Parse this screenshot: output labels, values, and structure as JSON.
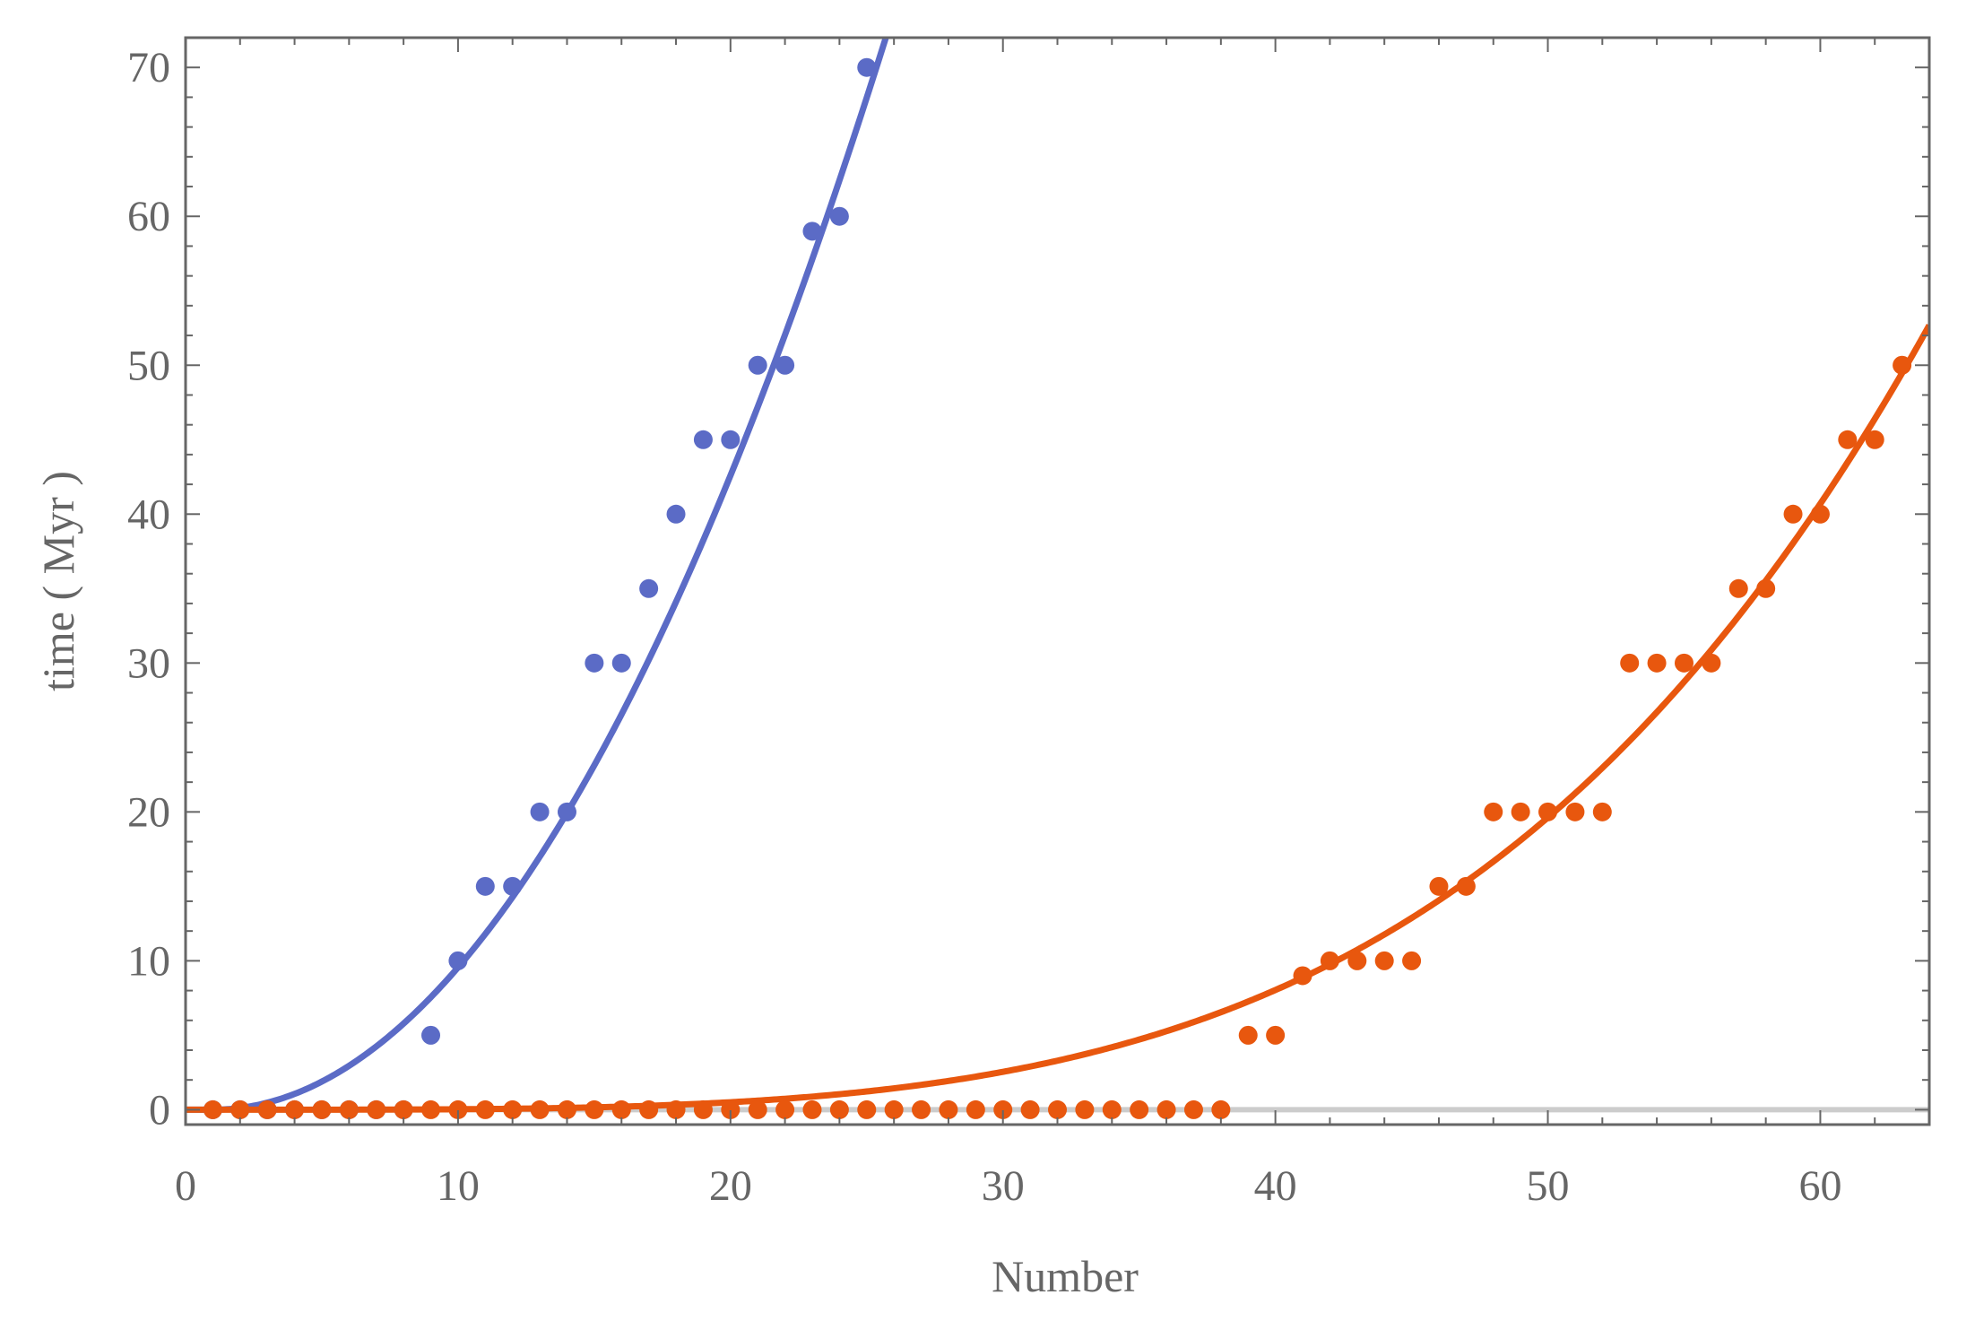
{
  "chart_data": {
    "type": "scatter",
    "title": "",
    "xlabel": "Number",
    "ylabel": "time ( Myr )",
    "xlim": [
      0,
      64
    ],
    "ylim": [
      -1,
      72
    ],
    "xticks": [
      0,
      10,
      20,
      30,
      40,
      50,
      60
    ],
    "yticks": [
      0,
      10,
      20,
      30,
      40,
      50,
      60,
      70
    ],
    "grid": false,
    "legend": "none",
    "reference_line_y": 0,
    "series": [
      {
        "color": "#5b6bc6",
        "points": [
          [
            1,
            0
          ],
          [
            2,
            0
          ],
          [
            3,
            0
          ],
          [
            4,
            0
          ],
          [
            5,
            0
          ],
          [
            6,
            0
          ],
          [
            7,
            0
          ],
          [
            8,
            0
          ],
          [
            9,
            5
          ],
          [
            10,
            10
          ],
          [
            11,
            15
          ],
          [
            12,
            15
          ],
          [
            13,
            20
          ],
          [
            14,
            20
          ],
          [
            15,
            30
          ],
          [
            16,
            30
          ],
          [
            17,
            35
          ],
          [
            18,
            40
          ],
          [
            19,
            45
          ],
          [
            20,
            45
          ],
          [
            21,
            50
          ],
          [
            22,
            50
          ],
          [
            23,
            59
          ],
          [
            24,
            60
          ],
          [
            25,
            70
          ]
        ],
        "fit": {
          "a": 0.118,
          "x0": 1,
          "p": 2
        }
      },
      {
        "color": "#e8570e",
        "points": [
          [
            1,
            0
          ],
          [
            2,
            0
          ],
          [
            3,
            0
          ],
          [
            4,
            0
          ],
          [
            5,
            0
          ],
          [
            6,
            0
          ],
          [
            7,
            0
          ],
          [
            8,
            0
          ],
          [
            9,
            0
          ],
          [
            10,
            0
          ],
          [
            11,
            0
          ],
          [
            12,
            0
          ],
          [
            13,
            0
          ],
          [
            14,
            0
          ],
          [
            15,
            0
          ],
          [
            16,
            0
          ],
          [
            17,
            0
          ],
          [
            18,
            0
          ],
          [
            19,
            0
          ],
          [
            20,
            0
          ],
          [
            21,
            0
          ],
          [
            22,
            0
          ],
          [
            23,
            0
          ],
          [
            24,
            0
          ],
          [
            25,
            0
          ],
          [
            26,
            0
          ],
          [
            27,
            0
          ],
          [
            28,
            0
          ],
          [
            29,
            0
          ],
          [
            30,
            0
          ],
          [
            31,
            0
          ],
          [
            32,
            0
          ],
          [
            33,
            0
          ],
          [
            34,
            0
          ],
          [
            35,
            0
          ],
          [
            36,
            0
          ],
          [
            37,
            0
          ],
          [
            38,
            0
          ],
          [
            39,
            5
          ],
          [
            40,
            5
          ],
          [
            41,
            9
          ],
          [
            42,
            10
          ],
          [
            43,
            10
          ],
          [
            44,
            10
          ],
          [
            45,
            10
          ],
          [
            46,
            15
          ],
          [
            47,
            15
          ],
          [
            48,
            20
          ],
          [
            49,
            20
          ],
          [
            50,
            20
          ],
          [
            51,
            20
          ],
          [
            52,
            20
          ],
          [
            53,
            30
          ],
          [
            54,
            30
          ],
          [
            55,
            30
          ],
          [
            56,
            30
          ],
          [
            57,
            35
          ],
          [
            58,
            35
          ],
          [
            59,
            40
          ],
          [
            60,
            40
          ],
          [
            61,
            45
          ],
          [
            62,
            45
          ],
          [
            63,
            50
          ]
        ],
        "fit": {
          "a": 3.14e-06,
          "x0": 0,
          "p": 4
        }
      }
    ]
  }
}
